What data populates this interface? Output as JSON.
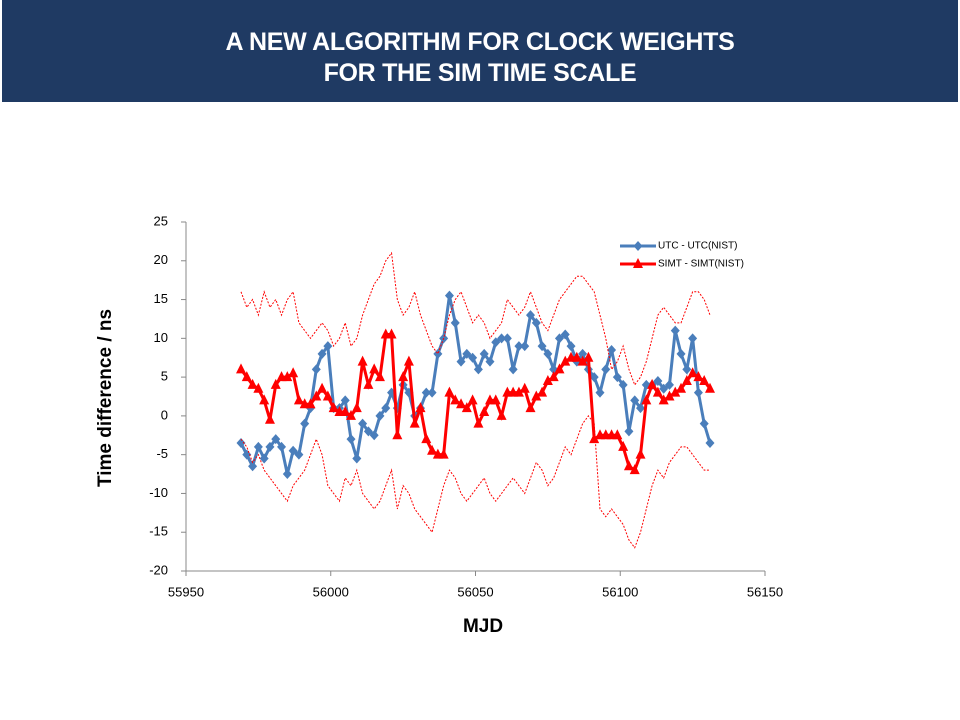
{
  "chart_data": {
    "type": "line",
    "title": [
      "A NEW ALGORITHM FOR CLOCK WEIGHTS",
      "FOR THE SIM TIME SCALE"
    ],
    "x_label": "MJD",
    "y_label": "Time difference / ns",
    "xlim": [
      55950,
      56150
    ],
    "xticks": [
      55950,
      56000,
      56050,
      56100,
      56150
    ],
    "ylim": [
      -20,
      25
    ],
    "yticks": [
      -20,
      -15,
      -10,
      -5,
      0,
      5,
      10,
      15,
      20,
      25
    ],
    "legend": "top-right",
    "x": [
      55969,
      55971,
      55973,
      55975,
      55977,
      55979,
      55981,
      55983,
      55985,
      55987,
      55989,
      55991,
      55993,
      55995,
      55997,
      55999,
      56001,
      56003,
      56005,
      56007,
      56009,
      56011,
      56013,
      56015,
      56017,
      56019,
      56021,
      56023,
      56025,
      56027,
      56029,
      56031,
      56033,
      56035,
      56037,
      56039,
      56041,
      56043,
      56045,
      56047,
      56049,
      56051,
      56053,
      56055,
      56057,
      56059,
      56061,
      56063,
      56065,
      56067,
      56069,
      56071,
      56073,
      56075,
      56077,
      56079,
      56081,
      56083,
      56085,
      56087,
      56089,
      56091,
      56093,
      56095,
      56097,
      56099,
      56101,
      56103,
      56105,
      56107,
      56109,
      56111,
      56113,
      56115,
      56117,
      56119,
      56121,
      56123,
      56125,
      56127,
      56129,
      56131
    ],
    "series": [
      {
        "name": "UTC - UTC(NIST)",
        "color": "#4a7ebb",
        "marker": "diamond",
        "values": [
          -3.5,
          -5,
          -6.5,
          -4,
          -5.5,
          -4,
          -3,
          -4,
          -7.5,
          -4.5,
          -5,
          -1,
          1,
          6,
          8,
          9,
          1,
          1,
          2,
          -3,
          -5.5,
          -1,
          -2,
          -2.5,
          0,
          1,
          3,
          1,
          4,
          3,
          0,
          1,
          3,
          3,
          8,
          10,
          15.5,
          12,
          7,
          8,
          7.5,
          6,
          8,
          7,
          9.5,
          10,
          10,
          6,
          9,
          9,
          13,
          12,
          9,
          8,
          6,
          10,
          10.5,
          9,
          7,
          8,
          6,
          5,
          3,
          6,
          8.5,
          5,
          4,
          -2,
          2,
          1,
          4,
          4,
          4.5,
          3.5,
          4,
          11,
          8,
          6,
          10,
          3,
          -1,
          -3.5
        ]
      },
      {
        "name": "SIMT - SIMT(NIST)",
        "color": "#ff0000",
        "marker": "triangle",
        "values": [
          6,
          5,
          4,
          3.5,
          2,
          -0.5,
          4,
          5,
          5,
          5.5,
          2,
          1.5,
          1.5,
          2.5,
          3.5,
          2.5,
          1,
          0.5,
          0.5,
          0,
          1,
          7,
          4,
          6,
          5,
          10.5,
          10.5,
          -2.5,
          5,
          7,
          -1,
          1,
          -3,
          -4.5,
          -5,
          -5,
          3,
          2,
          1.5,
          1,
          2,
          -1,
          0.5,
          2,
          2,
          0,
          3,
          3,
          3,
          3.5,
          1,
          2.5,
          3,
          4.5,
          5,
          6,
          7,
          7.5,
          7.5,
          7,
          7.5,
          -3,
          -2.5,
          -2.5,
          -2.5,
          -2.5,
          -4,
          -6.5,
          -7,
          -5,
          2,
          4,
          3,
          2,
          2.5,
          3,
          3.5,
          4.5,
          5.5,
          5,
          4.5,
          3.5
        ]
      },
      {
        "color": "#ff0000",
        "dashed": true,
        "values": [
          16,
          14,
          15,
          13,
          16,
          14,
          15,
          13,
          15,
          16,
          12,
          11,
          10,
          11,
          12,
          11,
          9,
          10,
          12,
          9,
          10,
          13,
          15,
          17,
          18,
          20,
          21,
          15,
          13,
          14,
          16,
          13,
          11,
          9,
          8,
          10,
          13,
          15,
          16,
          14,
          12,
          13,
          12,
          10,
          11,
          12,
          15,
          14,
          13,
          14,
          16,
          14,
          12,
          11,
          13,
          15,
          16,
          17,
          18,
          18,
          17,
          16,
          13,
          10,
          6,
          7,
          9,
          6,
          4,
          5,
          7,
          10,
          13,
          14,
          13,
          12,
          12,
          14,
          16,
          16,
          15,
          13
        ]
      },
      {
        "color": "#ff0000",
        "dashed": true,
        "values": [
          -3,
          -4,
          -6,
          -5,
          -7,
          -8,
          -9,
          -10,
          -11,
          -9,
          -8,
          -7,
          -5,
          -3,
          -5,
          -9,
          -10,
          -11,
          -8,
          -9,
          -7,
          -10,
          -11,
          -12,
          -11,
          -9,
          -7,
          -12,
          -9,
          -10,
          -12,
          -13,
          -14,
          -15,
          -12,
          -9,
          -7,
          -8,
          -10,
          -11,
          -10,
          -9,
          -8,
          -10,
          -11,
          -10,
          -9,
          -8,
          -9,
          -10,
          -8,
          -6,
          -7,
          -9,
          -8,
          -6,
          -4,
          -5,
          -3,
          -1,
          0,
          -1,
          -12,
          -13,
          -12,
          -13,
          -14,
          -16,
          -17,
          -15,
          -12,
          -9,
          -7,
          -8,
          -6,
          -5,
          -4,
          -4,
          -5,
          -6,
          -7,
          -7
        ]
      }
    ]
  }
}
